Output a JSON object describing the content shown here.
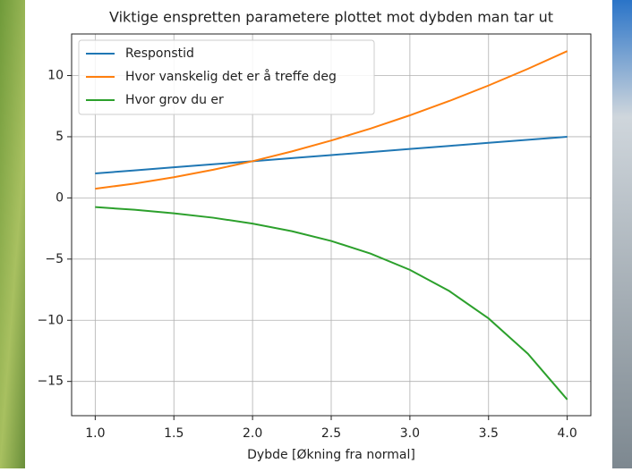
{
  "chart_data": {
    "type": "line",
    "title": "Viktige enspretten parametere plottet mot dybden man tar ut",
    "x_label": "Dybde [Økning fra normal]",
    "x": [
      1.0,
      1.25,
      1.5,
      1.75,
      2.0,
      2.25,
      2.5,
      2.75,
      3.0,
      3.25,
      3.5,
      3.75,
      4.0
    ],
    "series": [
      {
        "name": "Responstid",
        "color": "#1f77b4",
        "values": [
          2.0,
          2.25,
          2.5,
          2.75,
          3.0,
          3.25,
          3.5,
          3.75,
          4.0,
          4.25,
          4.5,
          4.75,
          5.0
        ]
      },
      {
        "name": "Hvor vanskelig det er å treffe deg",
        "color": "#ff7f0e",
        "values": [
          0.75,
          1.17,
          1.69,
          2.3,
          3.0,
          3.8,
          4.69,
          5.67,
          6.75,
          7.92,
          9.19,
          10.55,
          12.0
        ]
      },
      {
        "name": "Hvor grov du er",
        "color": "#2ca02c",
        "values": [
          -0.75,
          -0.97,
          -1.26,
          -1.62,
          -2.1,
          -2.72,
          -3.52,
          -4.55,
          -5.88,
          -7.61,
          -9.85,
          -12.74,
          -16.48
        ]
      }
    ],
    "xlim": [
      0.85,
      4.15
    ],
    "xticks": [
      {
        "value": 1,
        "label": "1.0"
      },
      1.5,
      {
        "value": 2,
        "label": "2.0"
      },
      2.5,
      {
        "value": 3,
        "label": "3.0"
      },
      3.5,
      {
        "value": 4,
        "label": "4.0"
      }
    ],
    "ylim": [
      -17.8,
      13.4
    ],
    "yticks": [
      {
        "value": -15,
        "label": "−15"
      },
      {
        "value": -10,
        "label": "−10"
      },
      {
        "value": -5,
        "label": "−5"
      },
      0,
      5,
      10
    ],
    "grid": true,
    "legend": "upper-left"
  }
}
